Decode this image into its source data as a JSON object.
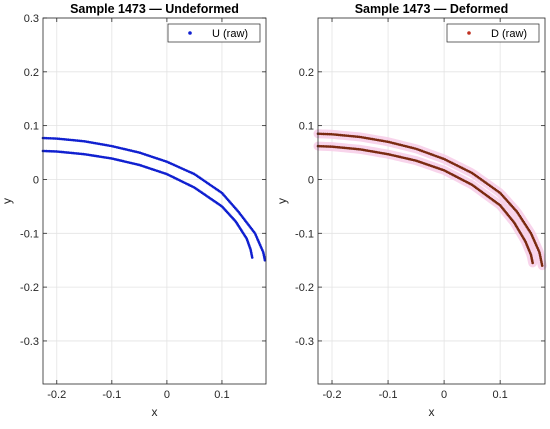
{
  "chart_data": [
    {
      "type": "scatter",
      "title": "Sample 1473 — Undeformed",
      "xlabel": "x",
      "ylabel": "y",
      "xlim": [
        -0.225,
        0.18
      ],
      "ylim": [
        -0.38,
        0.3
      ],
      "xticks": [
        -0.2,
        -0.1,
        0,
        0.1
      ],
      "xtick_labels": [
        "-0.2",
        "-0.1",
        "0",
        "0.1"
      ],
      "yticks": [
        -0.3,
        -0.2,
        -0.1,
        0,
        0.1,
        0.2,
        0.3
      ],
      "ytick_labels": [
        "-0.3",
        "-0.2",
        "-0.1",
        "0",
        "0.1",
        "0.2",
        "0.3"
      ],
      "grid": true,
      "legend": {
        "position": "top-right",
        "entries": [
          {
            "label": "U (raw)",
            "color": "#1020d0"
          }
        ]
      },
      "series": [
        {
          "name": "U (raw)",
          "color": "#1020d0",
          "curves": [
            {
              "x": [
                -0.225,
                -0.2,
                -0.15,
                -0.1,
                -0.05,
                0.0,
                0.05,
                0.1,
                0.13,
                0.16,
                0.175,
                0.178
              ],
              "y": [
                0.077,
                0.076,
                0.071,
                0.062,
                0.05,
                0.033,
                0.01,
                -0.025,
                -0.06,
                -0.1,
                -0.135,
                -0.15
              ]
            },
            {
              "x": [
                -0.225,
                -0.2,
                -0.15,
                -0.1,
                -0.05,
                0.0,
                0.05,
                0.1,
                0.125,
                0.145,
                0.152,
                0.155
              ],
              "y": [
                0.053,
                0.052,
                0.047,
                0.039,
                0.027,
                0.01,
                -0.015,
                -0.05,
                -0.078,
                -0.11,
                -0.13,
                -0.145
              ]
            }
          ]
        }
      ]
    },
    {
      "type": "scatter",
      "title": "Sample 1473 — Deformed",
      "xlabel": "x",
      "ylabel": "y",
      "xlim": [
        -0.225,
        0.18
      ],
      "ylim": [
        -0.38,
        0.3
      ],
      "xticks": [
        -0.2,
        -0.1,
        0,
        0.1
      ],
      "xtick_labels": [
        "-0.2",
        "-0.1",
        "0",
        "0.1"
      ],
      "yticks": [
        -0.3,
        -0.2,
        -0.1,
        0,
        0.1,
        0.2
      ],
      "ytick_labels": [
        "-0.3",
        "-0.2",
        "-0.1",
        "0",
        "0.1",
        "0.2"
      ],
      "grid": true,
      "legend": {
        "position": "top-right",
        "entries": [
          {
            "label": "D (raw)",
            "color": "#c03020"
          }
        ]
      },
      "band_color": "#f6c9e6",
      "series": [
        {
          "name": "D (raw)",
          "color": "#7a2a10",
          "curves": [
            {
              "x": [
                -0.225,
                -0.2,
                -0.15,
                -0.1,
                -0.05,
                0.0,
                0.05,
                0.1,
                0.13,
                0.155,
                0.17,
                0.175
              ],
              "y": [
                0.085,
                0.084,
                0.079,
                0.07,
                0.057,
                0.038,
                0.012,
                -0.025,
                -0.06,
                -0.1,
                -0.135,
                -0.16
              ]
            },
            {
              "x": [
                -0.225,
                -0.2,
                -0.15,
                -0.1,
                -0.05,
                0.0,
                0.05,
                0.1,
                0.125,
                0.145,
                0.155,
                0.158
              ],
              "y": [
                0.062,
                0.061,
                0.056,
                0.047,
                0.035,
                0.017,
                -0.01,
                -0.048,
                -0.08,
                -0.115,
                -0.14,
                -0.155
              ]
            }
          ]
        }
      ]
    }
  ]
}
